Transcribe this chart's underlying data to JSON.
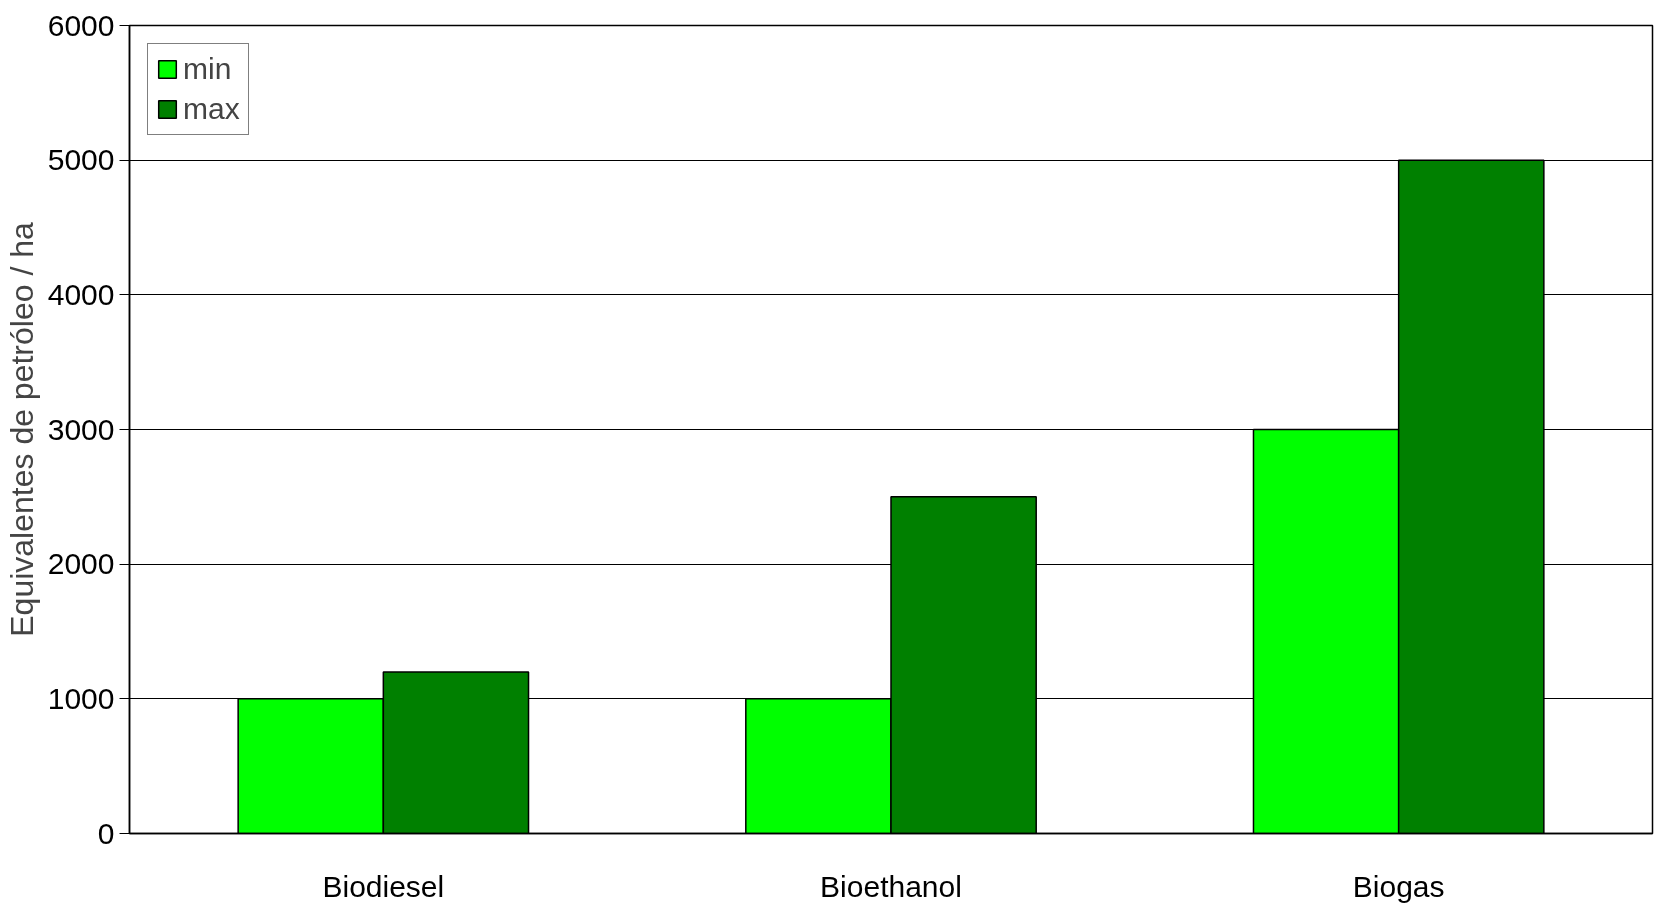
{
  "chart_data": {
    "type": "bar",
    "ylabel": "Equivalentes de petróleo / ha",
    "categories": [
      "Biodiesel",
      "Bioethanol",
      "Biogas"
    ],
    "series": [
      {
        "name": "min",
        "color": "#00ff00",
        "values": [
          1000,
          1000,
          3000
        ]
      },
      {
        "name": "max",
        "color": "#008000",
        "values": [
          1200,
          2500,
          5000
        ]
      }
    ],
    "ylim": [
      0,
      6000
    ],
    "yticks": [
      0,
      1000,
      2000,
      3000,
      4000,
      5000,
      6000
    ],
    "grid": "y",
    "legend": "top left"
  }
}
